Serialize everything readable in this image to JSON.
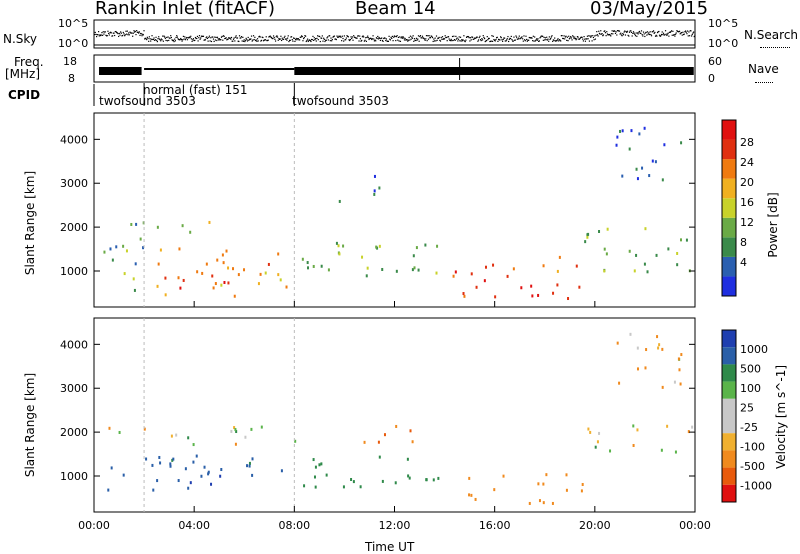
{
  "header": {
    "station": "Rankin Inlet (fitACF)",
    "beam": "Beam 14",
    "date": "03/May/2015"
  },
  "top_panels": {
    "nsky_label": "N.Sky",
    "nsky_ticks": [
      "10^5",
      "10^0"
    ],
    "nsearch_label": "N.Search",
    "nsearch_ticks": [
      "10^5",
      "10^0"
    ],
    "freq_label": "Freq.",
    "freq_unit": "[MHz]",
    "freq_ticks": [
      "18",
      "8"
    ],
    "nave_label": "Nave",
    "nave_ticks": [
      "60",
      "0"
    ],
    "cpid_label": "CPID",
    "cpid_segments": [
      {
        "name": "twofsound 3503",
        "start_hour": 0,
        "end_hour": 2
      },
      {
        "name": "normal (fast) 151",
        "start_hour": 2,
        "end_hour": 8
      },
      {
        "name": "twofsound 3503",
        "start_hour": 8,
        "end_hour": 24
      }
    ]
  },
  "colors": {
    "power_scale": [
      "#1f2fe0",
      "#2a5fb0",
      "#3a8a4a",
      "#6aaa46",
      "#c8d22a",
      "#f0b020",
      "#ef7a10",
      "#e03010",
      "#e01010"
    ],
    "velocity_scale": [
      "#e01010",
      "#e85a0c",
      "#f08a1e",
      "#f0b030",
      "#c8c8c8",
      "#c8c8c8",
      "#5ab44a",
      "#2f8a4a",
      "#2a5fa8",
      "#1f3fb0"
    ]
  },
  "chart_data": [
    {
      "type": "heatmap",
      "panel": "power",
      "xlabel": "Time UT",
      "ylabel": "Slant Range [km]",
      "x_ticks": [
        "00:00",
        "04:00",
        "08:00",
        "12:00",
        "16:00",
        "20:00",
        "00:00"
      ],
      "xlim": [
        0,
        24
      ],
      "ylim": [
        180,
        4600
      ],
      "y_ticks": [
        1000,
        2000,
        3000,
        4000
      ],
      "colorbar_label": "Power [dB]",
      "colorbar_ticks": [
        "28",
        "24",
        "20",
        "16",
        "12",
        "8",
        "4"
      ],
      "colorbar_range": [
        0,
        32
      ],
      "bands": [
        {
          "x": [
            0.1,
            2.0
          ],
          "y": [
            500,
            2200
          ],
          "value": 10
        },
        {
          "x": [
            2.2,
            7.8
          ],
          "y": [
            450,
            1600
          ],
          "value": 22
        },
        {
          "x": [
            3.2,
            5.5
          ],
          "y": [
            500,
            1100
          ],
          "value": 28
        },
        {
          "x": [
            2.5,
            6.0
          ],
          "y": [
            1900,
            2150
          ],
          "value": 16
        },
        {
          "x": [
            8.0,
            14.0
          ],
          "y": [
            700,
            1700
          ],
          "value": 12
        },
        {
          "x": [
            14.3,
            19.5
          ],
          "y": [
            400,
            1400
          ],
          "value": 26
        },
        {
          "x": [
            19.5,
            24.0
          ],
          "y": [
            1000,
            2100
          ],
          "value": 12
        },
        {
          "x": [
            9.5,
            11.5
          ],
          "y": [
            2600,
            3200
          ],
          "value": 6
        },
        {
          "x": [
            20.5,
            23.5
          ],
          "y": [
            3000,
            4300
          ],
          "value": 4
        }
      ]
    },
    {
      "type": "heatmap",
      "panel": "velocity",
      "xlabel": "Time UT",
      "ylabel": "Slant Range [km]",
      "x_ticks": [
        "00:00",
        "04:00",
        "08:00",
        "12:00",
        "16:00",
        "20:00",
        "00:00"
      ],
      "xlim": [
        0,
        24
      ],
      "ylim": [
        180,
        4600
      ],
      "y_ticks": [
        1000,
        2000,
        3000,
        4000
      ],
      "colorbar_label": "Velocity [m s^-1]",
      "colorbar_ticks": [
        "1000",
        "500",
        "100",
        "25",
        "-25",
        "-100",
        "-500",
        "-1000"
      ],
      "bands": [
        {
          "x": [
            0.1,
            8.0
          ],
          "y": [
            1750,
            2200
          ],
          "value": 0
        },
        {
          "x": [
            0.5,
            7.5
          ],
          "y": [
            700,
            1500
          ],
          "value": 600
        },
        {
          "x": [
            3.0,
            5.5
          ],
          "y": [
            800,
            1400
          ],
          "value": 1000
        },
        {
          "x": [
            8.0,
            14.0
          ],
          "y": [
            700,
            1500
          ],
          "value": 300
        },
        {
          "x": [
            14.3,
            19.5
          ],
          "y": [
            400,
            1100
          ],
          "value": -300
        },
        {
          "x": [
            19.5,
            24.0
          ],
          "y": [
            1500,
            2200
          ],
          "value": 0
        },
        {
          "x": [
            10.5,
            13.0
          ],
          "y": [
            1800,
            2300
          ],
          "value": -400
        },
        {
          "x": [
            20.5,
            23.5
          ],
          "y": [
            3000,
            4300
          ],
          "value": -100
        }
      ]
    }
  ]
}
